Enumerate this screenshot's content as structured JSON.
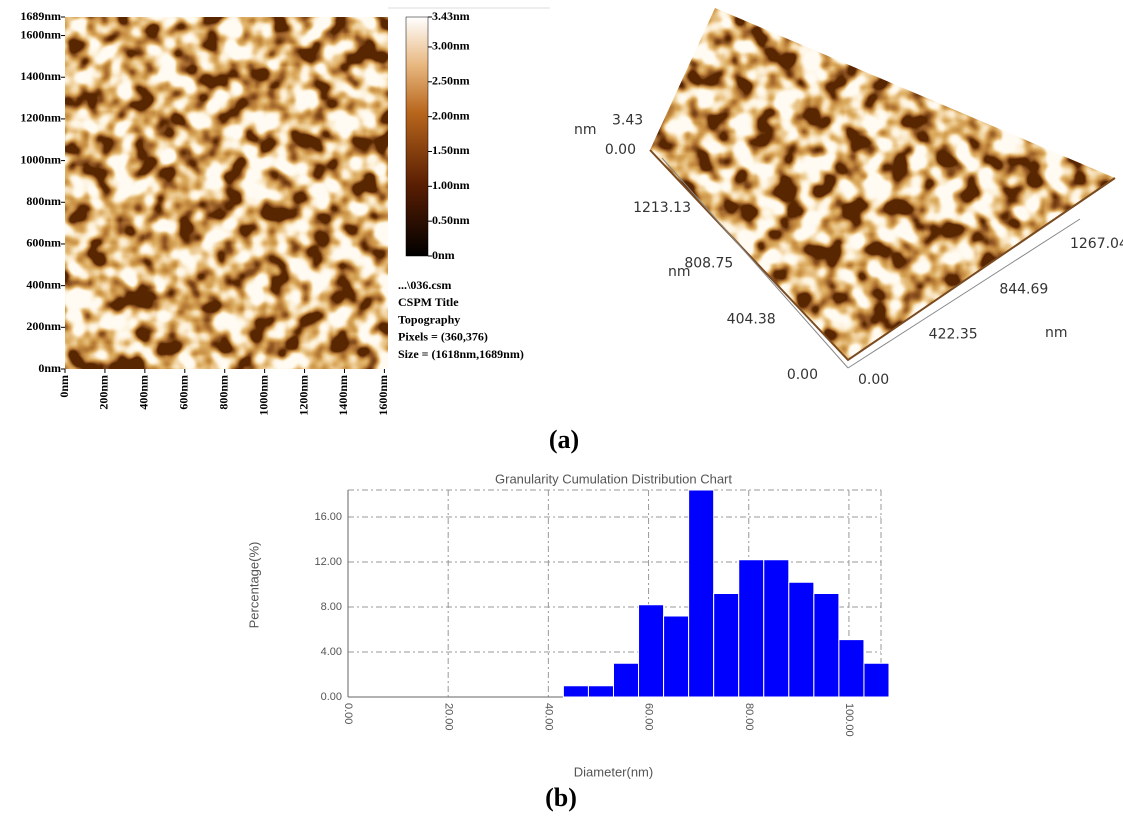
{
  "captions": [
    "(a)",
    "(b)"
  ],
  "chart_data": [
    {
      "type": "image",
      "xlim": [
        0,
        1618
      ],
      "ylim": [
        0,
        1689
      ],
      "xticks": [
        {
          "value": 0,
          "label": "0nm"
        },
        {
          "value": 200,
          "label": "200nm"
        },
        {
          "value": 400,
          "label": "400nm"
        },
        {
          "value": 600,
          "label": "600nm"
        },
        {
          "value": 800,
          "label": "800nm"
        },
        {
          "value": 1000,
          "label": "1000nm"
        },
        {
          "value": 1200,
          "label": "1200nm"
        },
        {
          "value": 1400,
          "label": "1400nm"
        },
        {
          "value": 1600,
          "label": "1600nm"
        }
      ],
      "yticks": [
        {
          "value": 0,
          "label": "0nm"
        },
        {
          "value": 200,
          "label": "200nm"
        },
        {
          "value": 400,
          "label": "400nm"
        },
        {
          "value": 600,
          "label": "600nm"
        },
        {
          "value": 800,
          "label": "800nm"
        },
        {
          "value": 1000,
          "label": "1000nm"
        },
        {
          "value": 1200,
          "label": "1200nm"
        },
        {
          "value": 1400,
          "label": "1400nm"
        },
        {
          "value": 1600,
          "label": "1600nm"
        },
        {
          "value": 1689,
          "label": "1689nm"
        }
      ],
      "colorbar": {
        "lim": [
          0,
          3.43
        ],
        "ticks": [
          {
            "value": 0,
            "label": "0nm"
          },
          {
            "value": 0.5,
            "label": "0.50nm"
          },
          {
            "value": 1,
            "label": "1.00nm"
          },
          {
            "value": 1.5,
            "label": "1.50nm"
          },
          {
            "value": 2,
            "label": "2.00nm"
          },
          {
            "value": 2.5,
            "label": "2.50nm"
          },
          {
            "value": 3,
            "label": "3.00nm"
          },
          {
            "value": 3.43,
            "label": "3.43nm"
          }
        ]
      },
      "info": [
        "...\\036.csm",
        "CSPM Title",
        "Topography",
        "Pixels = (360,376)",
        "Size = (1618nm,1689nm)"
      ]
    },
    {
      "type": "surface3d",
      "x_axis": {
        "label": "nm",
        "ticks": [
          {
            "value": 0,
            "label": "0.00"
          },
          422.35,
          844.69,
          1267.04
        ]
      },
      "y_axis": {
        "label": "nm",
        "ticks": [
          {
            "value": 0,
            "label": "0.00"
          },
          404.38,
          808.75,
          1213.13
        ]
      },
      "z_axis": {
        "label": "nm",
        "ticks": [
          {
            "value": 0,
            "label": "0.00"
          },
          3.43
        ]
      }
    },
    {
      "type": "histogram",
      "title": "Granularity Cumulation Distribution  Chart",
      "xlabel": "Diameter(nm)",
      "ylabel": "Percentage(%)",
      "bins": [
        43,
        48,
        53,
        58,
        63,
        68,
        73,
        78,
        83,
        88,
        93,
        98,
        103,
        108
      ],
      "values": [
        1.0,
        1.0,
        3.0,
        8.2,
        7.2,
        18.4,
        9.2,
        12.2,
        12.2,
        10.2,
        9.2,
        5.1,
        3.0
      ],
      "color": "#0000ff",
      "xlim": [
        0,
        108
      ],
      "ylim": [
        0,
        18.4
      ],
      "xticks": [
        {
          "value": 0,
          "label": "0.00"
        },
        {
          "value": 20,
          "label": "20.00"
        },
        {
          "value": 40,
          "label": "40.00"
        },
        {
          "value": 60,
          "label": "60.00"
        },
        {
          "value": 80,
          "label": "80.00"
        },
        {
          "value": 100,
          "label": "100.00"
        }
      ],
      "yticks": [
        {
          "value": 0,
          "label": "0.00"
        },
        {
          "value": 4,
          "label": "4.00"
        },
        {
          "value": 8,
          "label": "8.00"
        },
        {
          "value": 12,
          "label": "12.00"
        },
        {
          "value": 16,
          "label": "16.00"
        }
      ],
      "grid": true
    }
  ]
}
